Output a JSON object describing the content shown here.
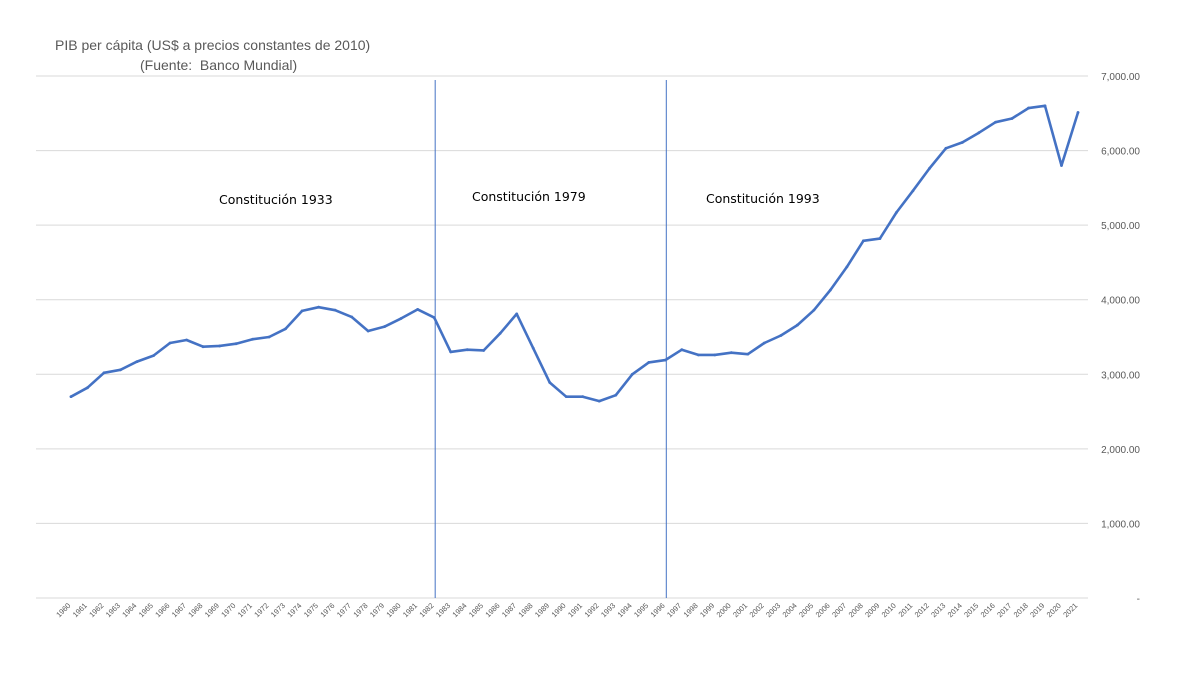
{
  "chart_data": {
    "type": "line",
    "title": "PIB per cápita (US$ a precios constantes de 2010)",
    "subtitle": "(Fuente:  Banco Mundial)",
    "xlabel": "",
    "ylabel": "",
    "ylim": [
      0,
      7000
    ],
    "y_ticks": [
      0,
      1000,
      2000,
      3000,
      4000,
      5000,
      6000,
      7000
    ],
    "y_tick_labels": [
      "-",
      "1,000.00",
      "2,000.00",
      "3,000.00",
      "4,000.00",
      "5,000.00",
      "6,000.00",
      "7,000.00"
    ],
    "y_axis_position": "right",
    "grid": "horizontal",
    "line_color": "#4472C4",
    "x": [
      "1960",
      "1961",
      "1962",
      "1963",
      "1964",
      "1965",
      "1966",
      "1967",
      "1968",
      "1969",
      "1970",
      "1971",
      "1972",
      "1973",
      "1974",
      "1975",
      "1976",
      "1977",
      "1978",
      "1979",
      "1980",
      "1981",
      "1982",
      "1983",
      "1984",
      "1985",
      "1986",
      "1987",
      "1988",
      "1989",
      "1990",
      "1991",
      "1992",
      "1993",
      "1994",
      "1995",
      "1996",
      "1997",
      "1998",
      "1999",
      "2000",
      "2001",
      "2002",
      "2003",
      "2004",
      "2005",
      "2006",
      "2007",
      "2008",
      "2009",
      "2010",
      "2011",
      "2012",
      "2013",
      "2014",
      "2015",
      "2016",
      "2017",
      "2018",
      "2019",
      "2020",
      "2021"
    ],
    "values": [
      2700,
      2820,
      3020,
      3060,
      3170,
      3250,
      3420,
      3460,
      3370,
      3380,
      3410,
      3470,
      3500,
      3610,
      3850,
      3900,
      3860,
      3770,
      3580,
      3640,
      3750,
      3870,
      3760,
      3300,
      3330,
      3320,
      3550,
      3810,
      3350,
      2890,
      2700,
      2700,
      2640,
      2720,
      3000,
      3160,
      3190,
      3330,
      3260,
      3260,
      3290,
      3270,
      3420,
      3520,
      3660,
      3860,
      4130,
      4440,
      4790,
      4820,
      5170,
      5460,
      5760,
      6030,
      6110,
      6240,
      6380,
      6430,
      6570,
      6600,
      5800,
      6510
    ],
    "annotations": [
      {
        "text": "Constitución 1933",
        "x": "1966"
      },
      {
        "text": "Constitución 1979",
        "x": "1987"
      },
      {
        "text": "Constitución 1993",
        "x": "2002"
      }
    ],
    "vertical_lines": [
      "1982",
      "1996"
    ]
  }
}
